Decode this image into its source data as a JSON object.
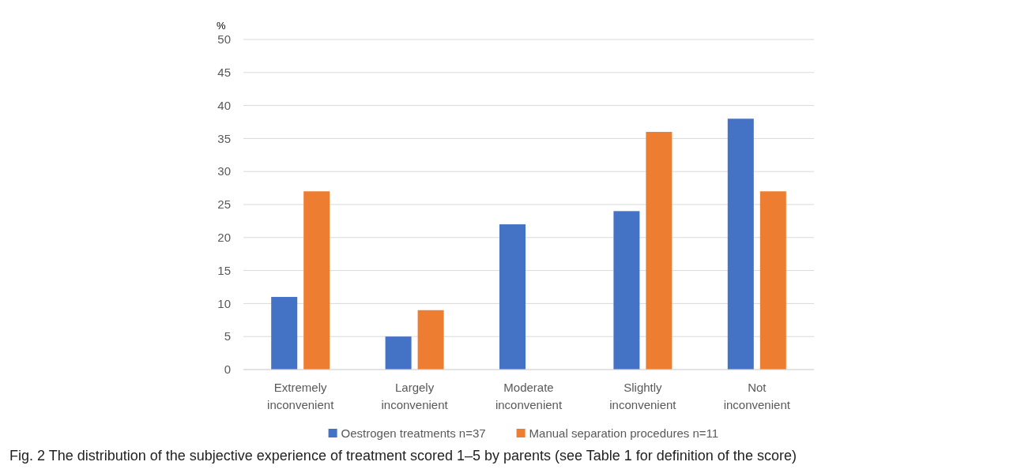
{
  "chart_data": {
    "type": "bar",
    "ylabel": "%",
    "categories": [
      "Extremely inconvenient",
      "Largely inconvenient",
      "Moderate inconvenient",
      "Slightly inconvenient",
      "Not inconvenient"
    ],
    "series": [
      {
        "name": "Oestrogen treatments n=37",
        "color": "#4472c4",
        "values": [
          11,
          5,
          22,
          24,
          38
        ]
      },
      {
        "name": "Manual separation procedures n=11",
        "color": "#ed7d31",
        "values": [
          27,
          9,
          0,
          36,
          27
        ]
      }
    ],
    "ylim": [
      0,
      50
    ],
    "yticks": [
      0,
      5,
      10,
      15,
      20,
      25,
      30,
      35,
      40,
      45,
      50
    ],
    "grid": "y",
    "legend": "bottom",
    "annotations": [
      "Fig. 2 The distribution of the subjective experience of treatment scored 1–5 by parents (see Table 1 for definition of the score)"
    ]
  }
}
